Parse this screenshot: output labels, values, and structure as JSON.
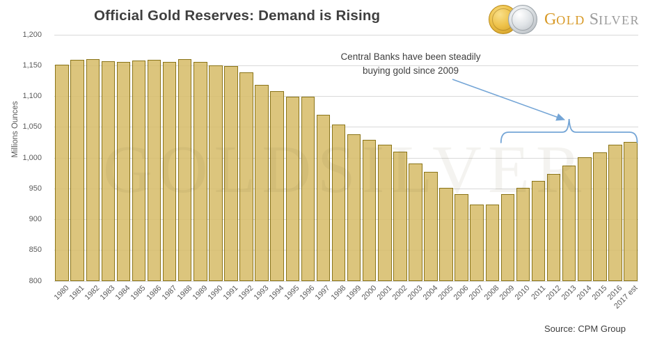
{
  "header": {
    "title": "Official Gold Reserves: Demand is Rising",
    "logo": {
      "gold_initial": "G",
      "gold_rest": "OLD",
      "silver_initial": "S",
      "silver_rest": "ILVER"
    }
  },
  "chart_data": {
    "type": "bar",
    "title": "Official Gold Reserves: Demand is Rising",
    "xlabel": "",
    "ylabel": "Millions Ounces",
    "ylim": [
      800,
      1200
    ],
    "ytick_step": 50,
    "ytick_labels": [
      "1,200",
      "1,150",
      "1,100",
      "1,050",
      "1,000",
      "950",
      "900",
      "850",
      "800"
    ],
    "grid": true,
    "legend": "none",
    "categories": [
      "1980",
      "1981",
      "1982",
      "1983",
      "1984",
      "1985",
      "1986",
      "1987",
      "1988",
      "1989",
      "1990",
      "1991",
      "1992",
      "1993",
      "1994",
      "1995",
      "1996",
      "1997",
      "1998",
      "1999",
      "2000",
      "2001",
      "2002",
      "2003",
      "2004",
      "2005",
      "2006",
      "2007",
      "2008",
      "2009",
      "2010",
      "2011",
      "2012",
      "2013",
      "2014",
      "2015",
      "2016",
      "2017 est"
    ],
    "values": [
      1152,
      1159,
      1161,
      1157,
      1156,
      1158,
      1159,
      1156,
      1161,
      1156,
      1150,
      1149,
      1139,
      1119,
      1109,
      1099,
      1099,
      1070,
      1054,
      1039,
      1029,
      1021,
      1010,
      991,
      978,
      952,
      941,
      924,
      924,
      941,
      952,
      963,
      974,
      988,
      1001,
      1009,
      1021,
      1026
    ],
    "annotation": {
      "line1": "Central Banks have been steadily",
      "line2": "buying gold since 2009",
      "brace_from_category": "2009",
      "brace_to_category": "2017 est"
    },
    "source": "Source: CPM Group"
  },
  "watermark": "GOLDSILVER",
  "colors": {
    "bar_fill": "rgba(214,187,102,0.85)",
    "bar_border": "#8a7418",
    "gridline": "#d9d9d9",
    "axis_text": "#595959",
    "title_text": "#3f3f3f",
    "annotation_blue": "#74a5d6",
    "logo_gold": "#d89a28",
    "logo_silver": "#9b9b9b"
  }
}
